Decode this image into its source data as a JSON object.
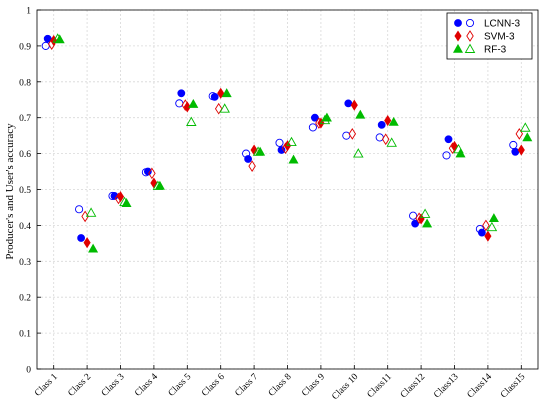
{
  "chart_data": {
    "type": "scatter",
    "title": "",
    "xlabel": "",
    "ylabel": "Producer's and User's accuracy",
    "ylim": [
      0,
      1
    ],
    "yticks": [
      0,
      0.1,
      0.2,
      0.3,
      0.4,
      0.5,
      0.6,
      0.7,
      0.8,
      0.9,
      1
    ],
    "ytick_labels": [
      "0",
      "0.1",
      "0.2",
      "0.3",
      "0.4",
      "0.5",
      "0.6",
      "0.7",
      "0.8",
      "0.9",
      "1"
    ],
    "grid": true,
    "legend_position": "top-right",
    "categories": [
      "Class 1",
      "Class 2",
      "Class 3",
      "Class 4",
      "Class 5",
      "Class 6",
      "Class 7",
      "Class 8",
      "Class 9",
      "Class 10",
      "Class11",
      "Class12",
      "Class13",
      "Class14",
      "Class15"
    ],
    "series": [
      {
        "name": "LCNN-3",
        "marker": "circle",
        "color": "#0000ff",
        "producers_accuracy_filled": [
          0.92,
          0.365,
          0.482,
          0.55,
          0.768,
          0.758,
          0.585,
          0.61,
          0.7,
          0.74,
          0.68,
          0.405,
          0.64,
          0.38,
          0.605
        ],
        "users_accuracy_open": [
          0.9,
          0.445,
          0.482,
          0.548,
          0.74,
          0.76,
          0.6,
          0.63,
          0.673,
          0.65,
          0.645,
          0.427,
          0.595,
          0.39,
          0.624
        ]
      },
      {
        "name": "SVM-3",
        "marker": "diamond",
        "color": "#e00000",
        "producers_accuracy_filled": [
          0.915,
          0.352,
          0.48,
          0.518,
          0.73,
          0.768,
          0.61,
          0.622,
          0.685,
          0.735,
          0.692,
          0.418,
          0.62,
          0.37,
          0.61
        ],
        "users_accuracy_open": [
          0.905,
          0.425,
          0.475,
          0.545,
          0.735,
          0.725,
          0.565,
          0.615,
          0.685,
          0.655,
          0.64,
          0.42,
          0.615,
          0.4,
          0.655
        ]
      },
      {
        "name": "RF-3",
        "marker": "triangle",
        "color": "#00bb00",
        "producers_accuracy_filled": [
          0.918,
          0.335,
          0.462,
          0.51,
          0.738,
          0.768,
          0.605,
          0.583,
          0.7,
          0.708,
          0.688,
          0.405,
          0.6,
          0.42,
          0.645
        ],
        "users_accuracy_open": [
          0.92,
          0.435,
          0.465,
          0.51,
          0.688,
          0.725,
          0.605,
          0.632,
          0.693,
          0.6,
          0.63,
          0.432,
          0.612,
          0.395,
          0.672
        ]
      }
    ]
  }
}
